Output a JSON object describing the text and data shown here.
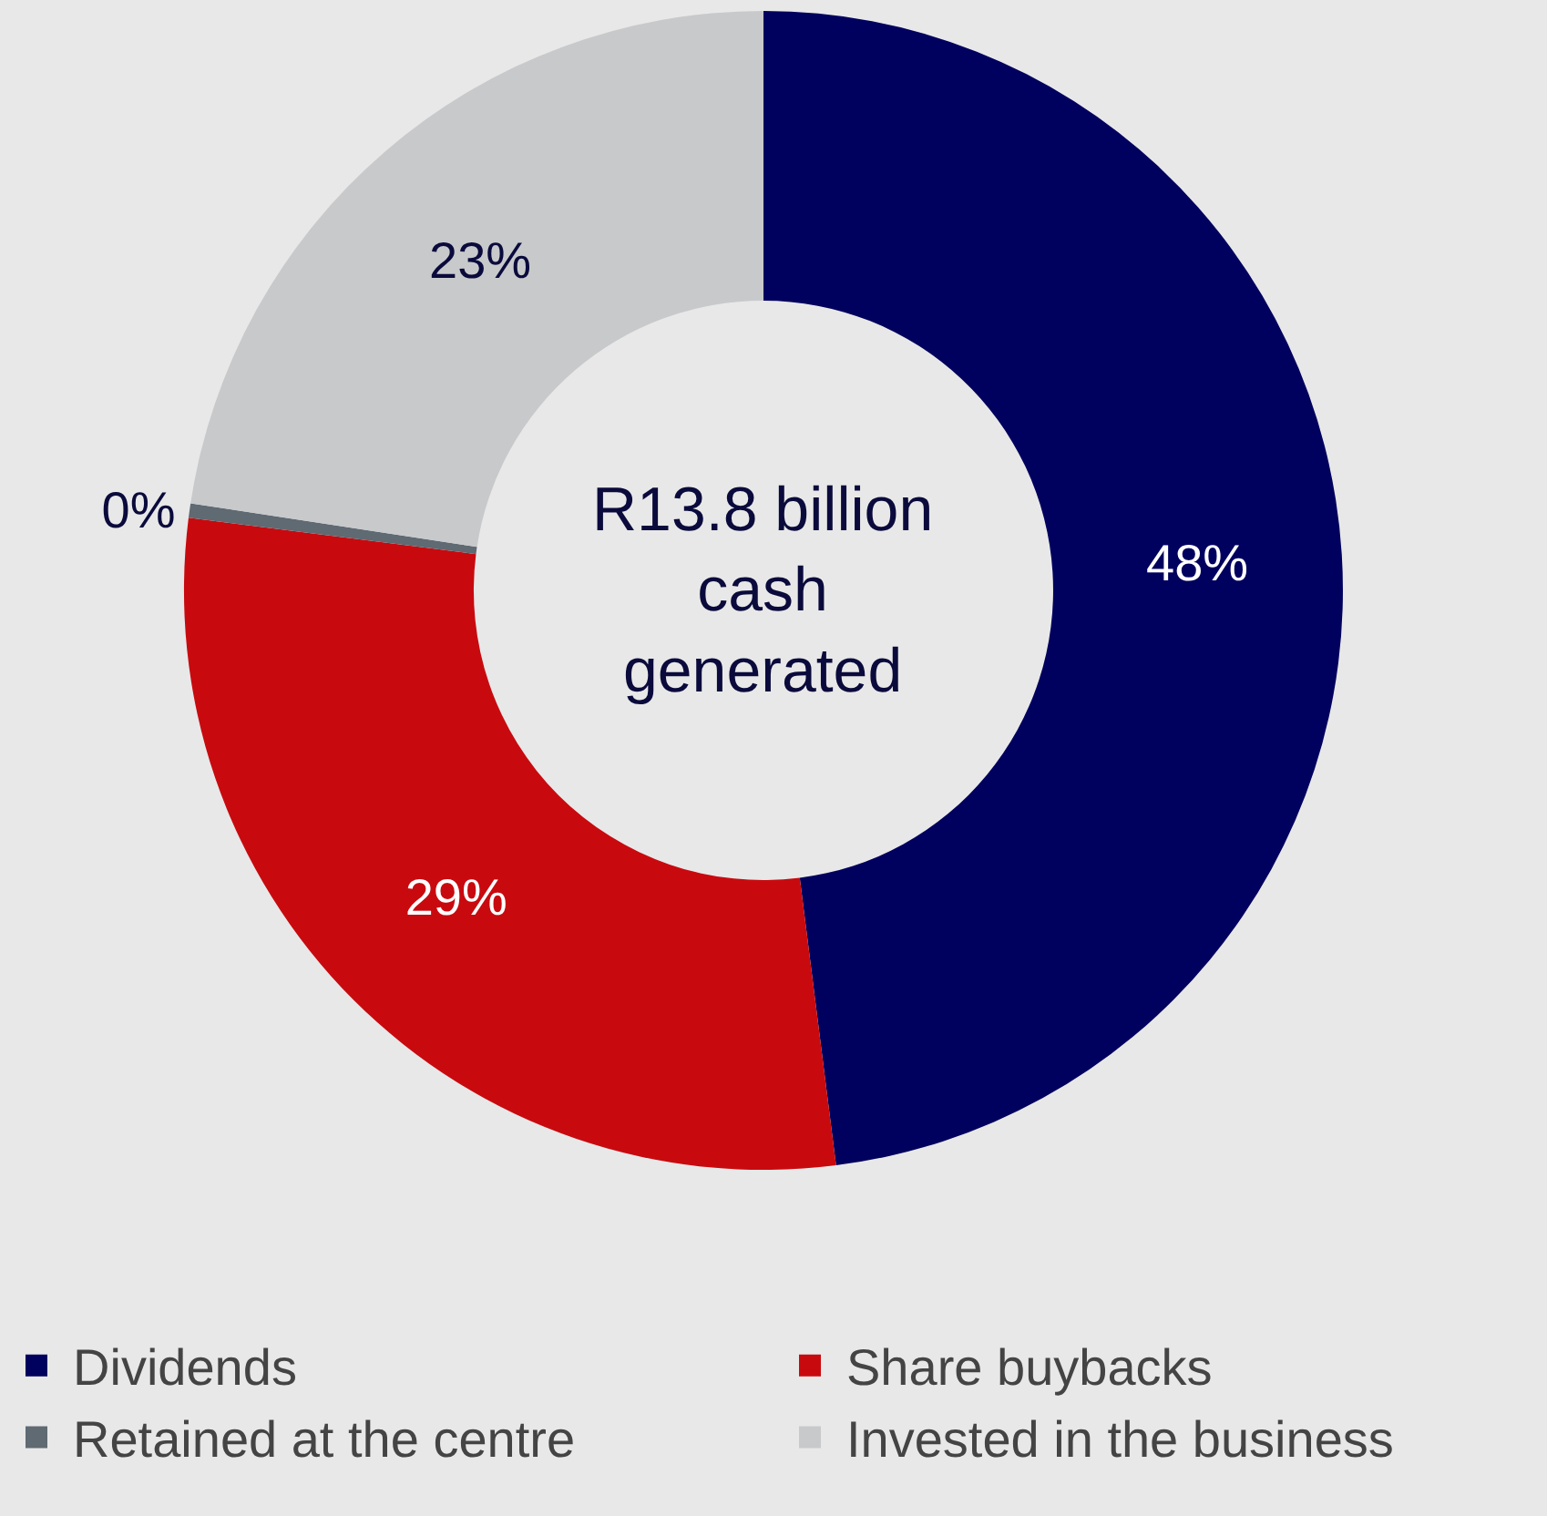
{
  "chart_data": {
    "type": "donut",
    "annotations": [
      "R13.8 billion cash generated"
    ],
    "categories": [
      "Dividends",
      "Share buybacks",
      "Retained at the centre",
      "Invested in the business"
    ],
    "values": [
      48,
      29,
      0.4,
      22.6
    ],
    "colors": [
      "#00005e",
      "#c80a0f",
      "#5f6a72",
      "#c8c9cb"
    ],
    "value_labels": [
      "48%",
      "29%",
      "0%",
      "23%"
    ],
    "legend": "bottom"
  }
}
